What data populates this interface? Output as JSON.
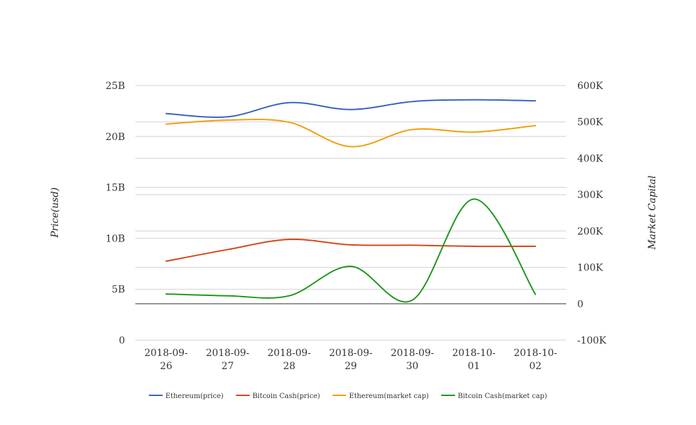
{
  "chart_data": {
    "type": "line",
    "categories": [
      [
        "2018-09-",
        "26"
      ],
      [
        "2018-09-",
        "27"
      ],
      [
        "2018-09-",
        "28"
      ],
      [
        "2018-09-",
        "29"
      ],
      [
        "2018-09-",
        "30"
      ],
      [
        "2018-10-",
        "01"
      ],
      [
        "2018-10-",
        "02"
      ]
    ],
    "ylabel_left": "Price(usd)",
    "ylabel_right": "Market Capital",
    "y_left": {
      "min": 0,
      "max": 25,
      "ticks": [
        0,
        5,
        10,
        15,
        20,
        25
      ],
      "tick_labels": [
        "0",
        "5B",
        "10B",
        "15B",
        "20B",
        "25B"
      ]
    },
    "y_right": {
      "min": -100,
      "max": 600,
      "ticks": [
        -100,
        0,
        100,
        200,
        300,
        400,
        500,
        600
      ],
      "tick_labels": [
        "-100K",
        "0",
        "100K",
        "200K",
        "300K",
        "400K",
        "500K",
        "600K"
      ]
    },
    "grid": true,
    "legend_position": "bottom",
    "series": [
      {
        "name": "Ethereum(price)",
        "axis": "right",
        "color": "#3a63be",
        "values": [
          523,
          514,
          553,
          534,
          556,
          561,
          558
        ]
      },
      {
        "name": "Bitcoin Cash(price)",
        "axis": "right",
        "color": "#d34817",
        "values": [
          117,
          149,
          177,
          162,
          161,
          158,
          158
        ]
      },
      {
        "name": "Ethereum(market cap)",
        "axis": "right",
        "color": "#f29e0c",
        "values": [
          494,
          505,
          499,
          432,
          479,
          472,
          490
        ]
      },
      {
        "name": "Bitcoin Cash(market cap)",
        "axis": "right",
        "color": "#20961e",
        "values": [
          27,
          22,
          22,
          103,
          10,
          288,
          26
        ]
      }
    ]
  }
}
